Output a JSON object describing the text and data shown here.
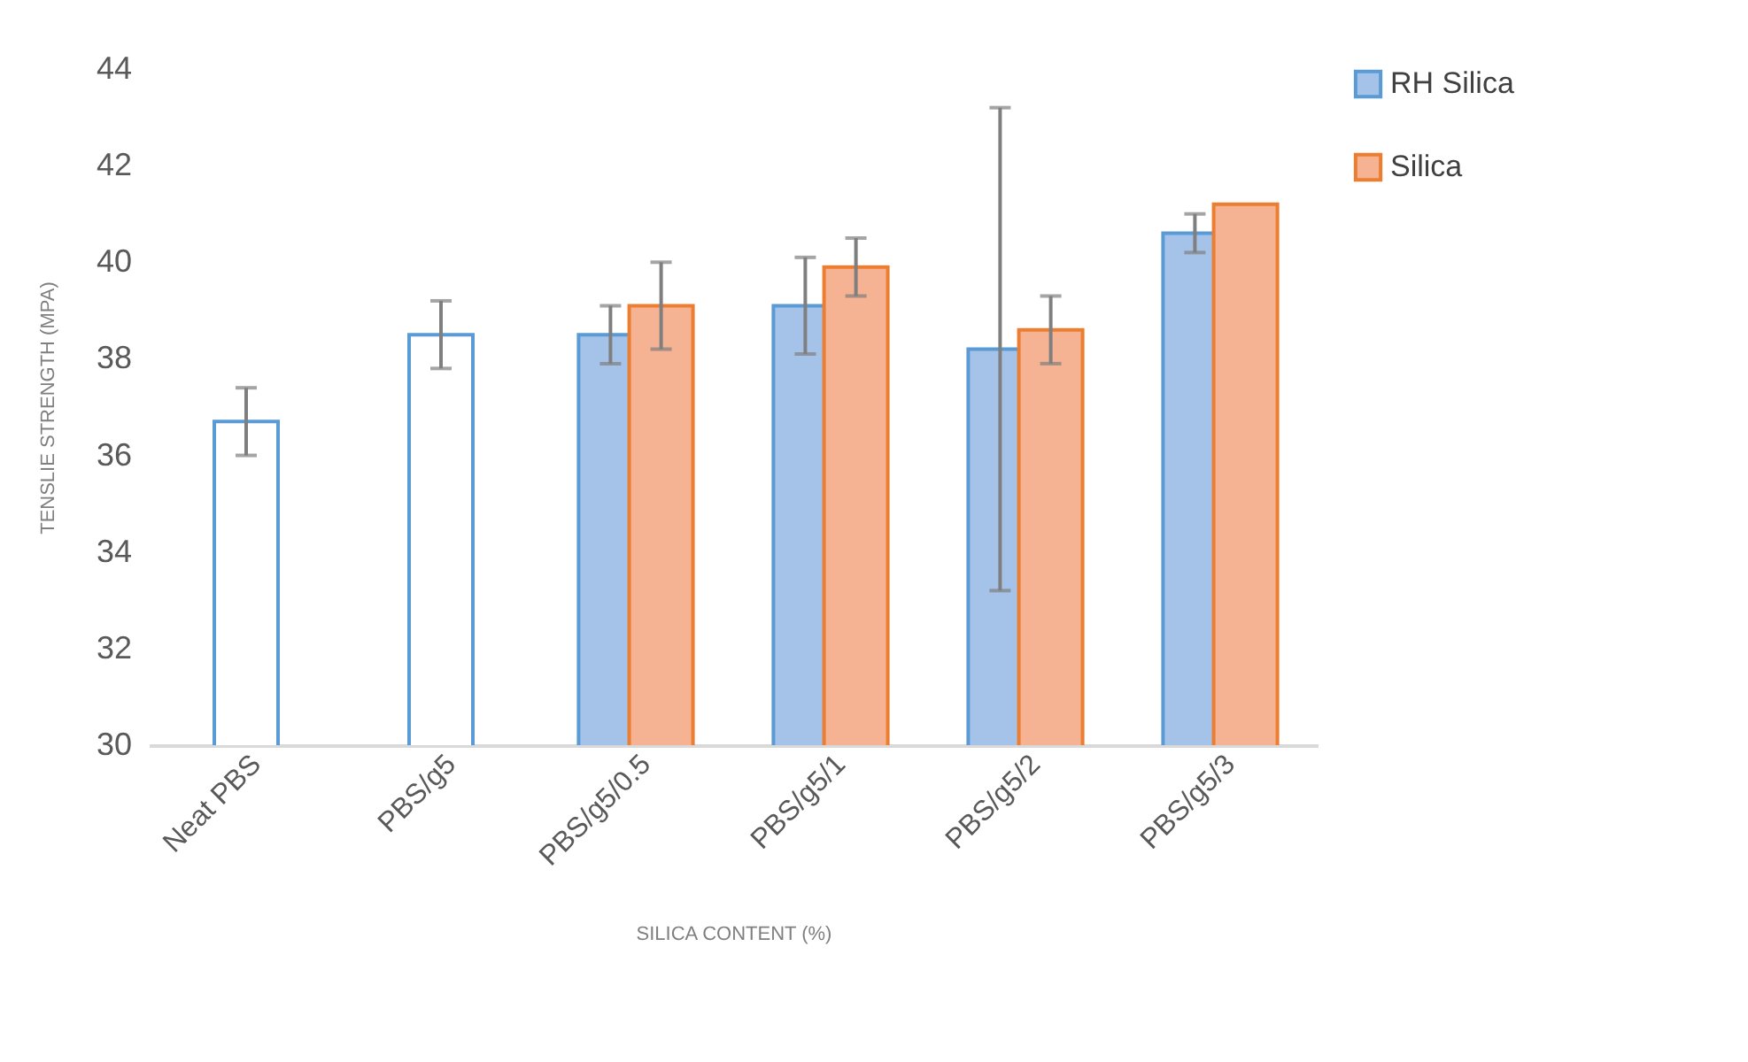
{
  "chart_data": {
    "type": "bar",
    "xlabel": "SILICA CONTENT (%)",
    "ylabel": "TENSLIE STRENGTH (MPA)",
    "categories": [
      "Neat PBS",
      "PBS/g5",
      "PBS/g5/0.5",
      "PBS/g5/1",
      "PBS/g5/2",
      "PBS/g5/3"
    ],
    "series": [
      {
        "name": "RH Silica",
        "color": "#5b9bd5",
        "colors": [
          "#ffffff",
          "#ffffff",
          "#a5c3e8",
          "#a5c3e8",
          "#a5c3e8",
          "#a5c3e8"
        ],
        "values": [
          36.7,
          38.5,
          38.5,
          39.1,
          38.2,
          40.6
        ],
        "errors": [
          0.7,
          0.7,
          0.6,
          1.0,
          5.0,
          0.4
        ]
      },
      {
        "name": "Silica",
        "color": "#ed7d31",
        "colors": [
          null,
          null,
          "#f5b393",
          "#f5b393",
          "#f5b393",
          "#f5b393"
        ],
        "values": [
          null,
          null,
          39.1,
          39.9,
          38.6,
          41.2
        ],
        "errors": [
          null,
          null,
          0.9,
          0.6,
          0.7,
          null
        ]
      }
    ],
    "ylim": [
      30,
      44
    ],
    "yticks": [
      30,
      32,
      34,
      36,
      38,
      40,
      42,
      44
    ],
    "grid": false,
    "legend": "right"
  }
}
